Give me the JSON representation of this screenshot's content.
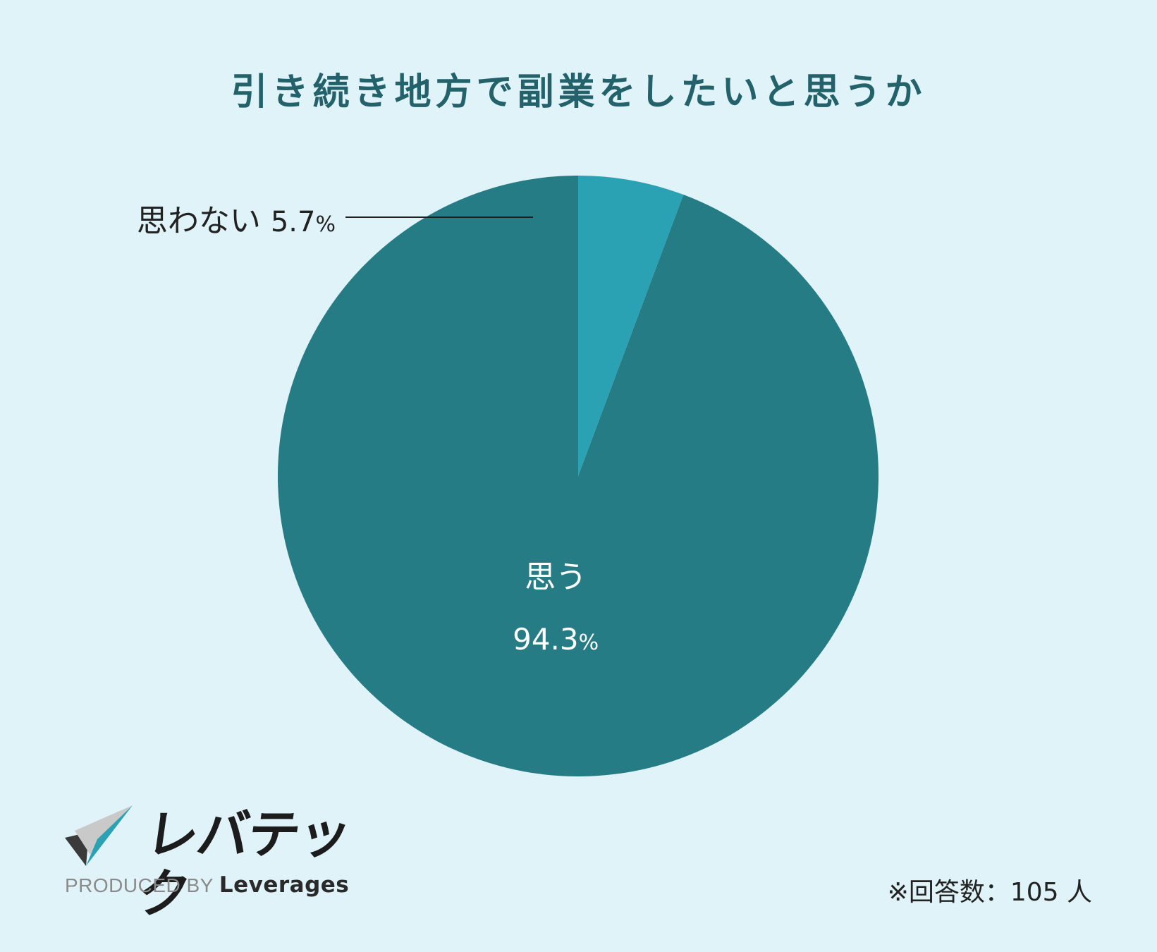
{
  "title": "引き続き地方で副業をしたいと思うか",
  "chart_data": {
    "type": "pie",
    "title": "引き続き地方で副業をしたいと思うか",
    "slices": [
      {
        "label": "思う",
        "value": 94.3,
        "value_text": "94.3",
        "unit": "%",
        "color": "#257c85"
      },
      {
        "label": "思わない",
        "value": 5.7,
        "value_text": "5.7",
        "unit": "%",
        "color": "#2ba2b4"
      }
    ],
    "start_angle": "12 o'clock",
    "direction": "counterclockwise",
    "small_slice_label": "outside-left with leader line"
  },
  "brand": {
    "wordmark": "レバテック",
    "produced_by": "PRODUCED BY",
    "company": "Leverages"
  },
  "footnote": "※回答数：105 人",
  "colors": {
    "background": "#dff3f8",
    "title": "#23626a",
    "slice_major": "#257c85",
    "slice_minor": "#2ba2b4"
  }
}
